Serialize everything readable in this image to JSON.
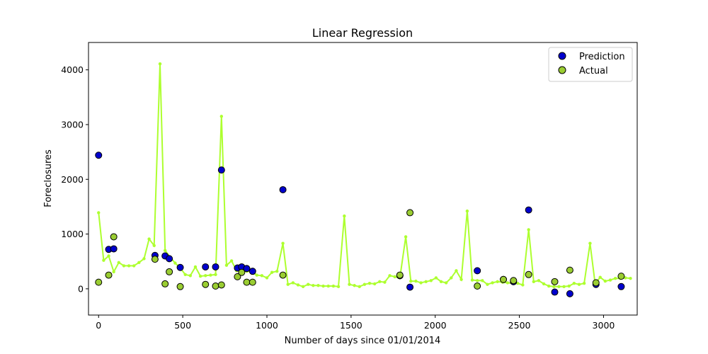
{
  "chart_data": {
    "type": "scatter",
    "title": "Linear Regression",
    "xlabel": "Number of days since 01/01/2014",
    "ylabel": "Foreclosures",
    "xlim": [
      -60,
      3200
    ],
    "ylim": [
      -480,
      4500
    ],
    "xticks": [
      0,
      500,
      1000,
      1500,
      2000,
      2500,
      3000
    ],
    "yticks": [
      0,
      1000,
      2000,
      3000,
      4000
    ],
    "grid": false,
    "legend_position": "top-right",
    "line_series": {
      "color": "#adff2f",
      "x": [
        0,
        30,
        60,
        90,
        120,
        150,
        180,
        210,
        240,
        270,
        300,
        330,
        365,
        395,
        425,
        455,
        485,
        515,
        545,
        575,
        605,
        635,
        665,
        695,
        730,
        760,
        790,
        820,
        850,
        880,
        910,
        940,
        970,
        1000,
        1030,
        1060,
        1095,
        1125,
        1155,
        1185,
        1215,
        1245,
        1275,
        1305,
        1335,
        1365,
        1395,
        1425,
        1460,
        1490,
        1520,
        1550,
        1580,
        1610,
        1640,
        1670,
        1700,
        1730,
        1760,
        1790,
        1825,
        1855,
        1885,
        1915,
        1945,
        1975,
        2005,
        2035,
        2065,
        2095,
        2125,
        2155,
        2190,
        2220,
        2250,
        2280,
        2310,
        2340,
        2370,
        2400,
        2430,
        2460,
        2490,
        2520,
        2555,
        2585,
        2615,
        2645,
        2675,
        2705,
        2735,
        2765,
        2795,
        2825,
        2855,
        2885,
        2920,
        2950,
        2980,
        3010,
        3040,
        3070,
        3100,
        3130,
        3160
      ],
      "y": [
        1390,
        520,
        600,
        310,
        480,
        420,
        420,
        420,
        480,
        550,
        910,
        790,
        4110,
        700,
        580,
        470,
        380,
        260,
        240,
        400,
        230,
        240,
        250,
        260,
        3150,
        430,
        510,
        330,
        360,
        320,
        310,
        250,
        240,
        200,
        300,
        320,
        830,
        80,
        110,
        70,
        40,
        80,
        60,
        60,
        50,
        50,
        50,
        40,
        1330,
        80,
        60,
        40,
        80,
        100,
        90,
        130,
        120,
        240,
        220,
        200,
        950,
        140,
        140,
        110,
        130,
        150,
        200,
        130,
        110,
        200,
        330,
        170,
        1420,
        160,
        150,
        150,
        80,
        110,
        130,
        120,
        110,
        100,
        100,
        70,
        1080,
        130,
        150,
        90,
        50,
        40,
        40,
        40,
        50,
        100,
        80,
        100,
        830,
        90,
        210,
        140,
        160,
        190,
        190,
        200,
        190
      ]
    },
    "series": [
      {
        "name": "Prediction",
        "color": "#0000cd",
        "x": [
          0,
          60,
          90,
          335,
          395,
          420,
          485,
          635,
          695,
          730,
          825,
          850,
          880,
          915,
          1095,
          1790,
          1850,
          2250,
          2405,
          2465,
          2555,
          2710,
          2800,
          2955,
          3105
        ],
        "y": [
          2440,
          720,
          730,
          610,
          600,
          550,
          390,
          400,
          400,
          2170,
          380,
          400,
          370,
          320,
          1810,
          240,
          30,
          330,
          170,
          130,
          1440,
          -60,
          -90,
          80,
          40
        ]
      },
      {
        "name": "Actual",
        "color": "#9acd32",
        "x": [
          0,
          60,
          90,
          335,
          395,
          420,
          485,
          635,
          695,
          730,
          825,
          850,
          880,
          915,
          1095,
          1790,
          1850,
          2250,
          2405,
          2465,
          2555,
          2710,
          2800,
          2955,
          3105
        ],
        "y": [
          120,
          250,
          950,
          540,
          90,
          310,
          40,
          80,
          50,
          70,
          220,
          300,
          120,
          120,
          250,
          250,
          1390,
          50,
          170,
          150,
          260,
          130,
          340,
          110,
          230
        ]
      }
    ]
  }
}
